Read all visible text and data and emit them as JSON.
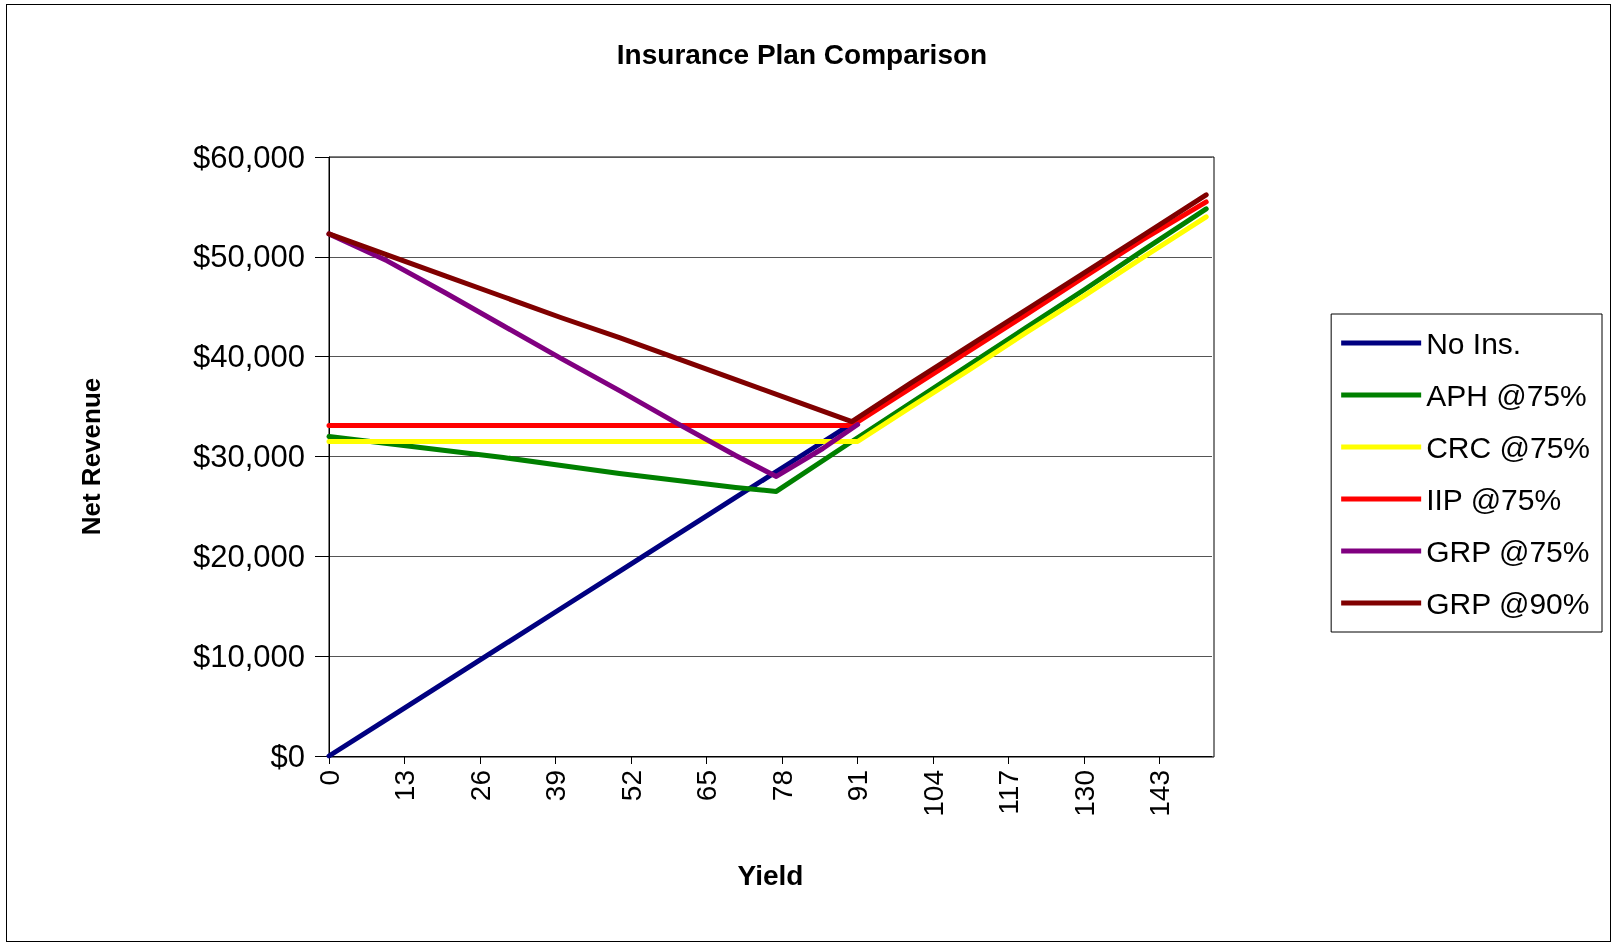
{
  "chart_data": {
    "type": "line",
    "title": "Insurance Plan Comparison",
    "xlabel": "Yield",
    "ylabel": "Net Revenue",
    "xlim": [
      0,
      152
    ],
    "xticks": [
      0,
      13,
      26,
      39,
      52,
      65,
      78,
      91,
      104,
      117,
      130,
      143
    ],
    "ylim": [
      0,
      60000
    ],
    "yticks": [
      {
        "value": 0,
        "label": "$0"
      },
      {
        "value": 10000,
        "label": "$10,000"
      },
      {
        "value": 20000,
        "label": "$20,000"
      },
      {
        "value": 30000,
        "label": "$30,000"
      },
      {
        "value": 40000,
        "label": "$40,000"
      },
      {
        "value": 50000,
        "label": "$50,000"
      },
      {
        "value": 60000,
        "label": "$60,000"
      }
    ],
    "grid": "y",
    "legend": "right",
    "marker": "none",
    "line_style": "solid",
    "series": [
      {
        "name": "No Ins.",
        "color": "#000080",
        "x": [
          0,
          10,
          20,
          30,
          40,
          50,
          60,
          70,
          80,
          90
        ],
        "values": [
          0,
          3700,
          7400,
          11100,
          14800,
          18500,
          22200,
          25900,
          29600,
          33300
        ]
      },
      {
        "name": "APH @75%",
        "color": "#008000",
        "x": [
          0,
          10,
          20,
          30,
          40,
          50,
          60,
          70,
          77,
          90,
          100,
          110,
          120,
          130,
          140,
          151
        ],
        "values": [
          32000,
          31300,
          30600,
          29900,
          29100,
          28300,
          27600,
          26900,
          26500,
          31500,
          35300,
          39100,
          42900,
          46700,
          50600,
          54800
        ]
      },
      {
        "name": "CRC @75%",
        "color": "#ffff00",
        "x": [
          0,
          91,
          100,
          110,
          120,
          130,
          140,
          151
        ],
        "values": [
          31500,
          31500,
          34900,
          38600,
          42400,
          46100,
          49900,
          54000
        ]
      },
      {
        "name": "IIP @75%",
        "color": "#ff0000",
        "x": [
          0,
          90,
          100,
          110,
          120,
          130,
          140,
          151
        ],
        "values": [
          33100,
          33100,
          36800,
          40500,
          44200,
          48000,
          51700,
          55500
        ]
      },
      {
        "name": "GRP @75%",
        "color": "#800080",
        "x": [
          0,
          10,
          20,
          30,
          40,
          50,
          60,
          70,
          77,
          85,
          91
        ],
        "values": [
          52300,
          49600,
          46400,
          43100,
          39800,
          36600,
          33300,
          30100,
          28000,
          30800,
          33200
        ]
      },
      {
        "name": "GRP @90%",
        "color": "#800000",
        "x": [
          0,
          10,
          20,
          30,
          40,
          50,
          60,
          70,
          80,
          90,
          100,
          110,
          120,
          130,
          140,
          151
        ],
        "values": [
          52300,
          50200,
          48100,
          46000,
          43900,
          41900,
          39800,
          37700,
          35600,
          33500,
          37300,
          41000,
          44700,
          48400,
          52100,
          56200
        ]
      }
    ]
  }
}
